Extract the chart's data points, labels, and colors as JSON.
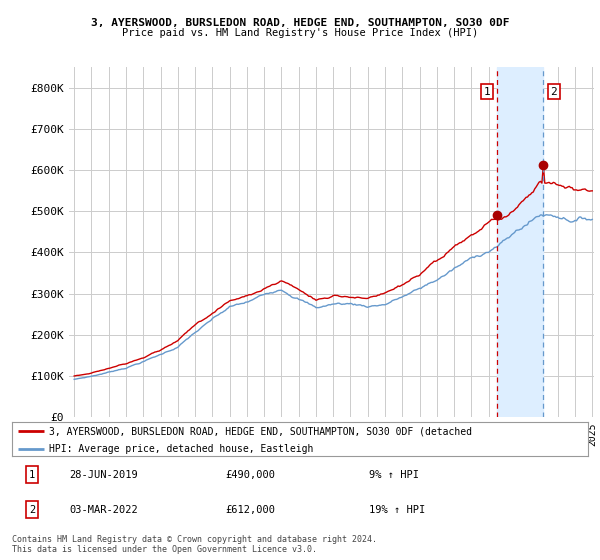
{
  "title1": "3, AYERSWOOD, BURSLEDON ROAD, HEDGE END, SOUTHAMPTON, SO30 0DF",
  "title2": "Price paid vs. HM Land Registry's House Price Index (HPI)",
  "ylim": [
    0,
    850000
  ],
  "yticks": [
    0,
    100000,
    200000,
    300000,
    400000,
    500000,
    600000,
    700000,
    800000
  ],
  "ytick_labels": [
    "£0",
    "£100K",
    "£200K",
    "£300K",
    "£400K",
    "£500K",
    "£600K",
    "£700K",
    "£800K"
  ],
  "line1_color": "#cc0000",
  "line2_color": "#6699cc",
  "fill_color": "#ddeeff",
  "marker1_color": "#aa0000",
  "sale1_year": 2019.49,
  "sale1_price": 490000,
  "sale2_year": 2022.17,
  "sale2_price": 612000,
  "vline1_color": "#cc0000",
  "vline2_color": "#6699cc",
  "legend1": "3, AYERSWOOD, BURSLEDON ROAD, HEDGE END, SOUTHAMPTON, SO30 0DF (detached",
  "legend2": "HPI: Average price, detached house, Eastleigh",
  "annotation1_date": "28-JUN-2019",
  "annotation1_price": "£490,000",
  "annotation1_pct": "9% ↑ HPI",
  "annotation2_date": "03-MAR-2022",
  "annotation2_price": "£612,000",
  "annotation2_pct": "19% ↑ HPI",
  "footer": "Contains HM Land Registry data © Crown copyright and database right 2024.\nThis data is licensed under the Open Government Licence v3.0.",
  "xstart": 1995,
  "xend": 2025,
  "background_color": "#ffffff",
  "grid_color": "#cccccc"
}
